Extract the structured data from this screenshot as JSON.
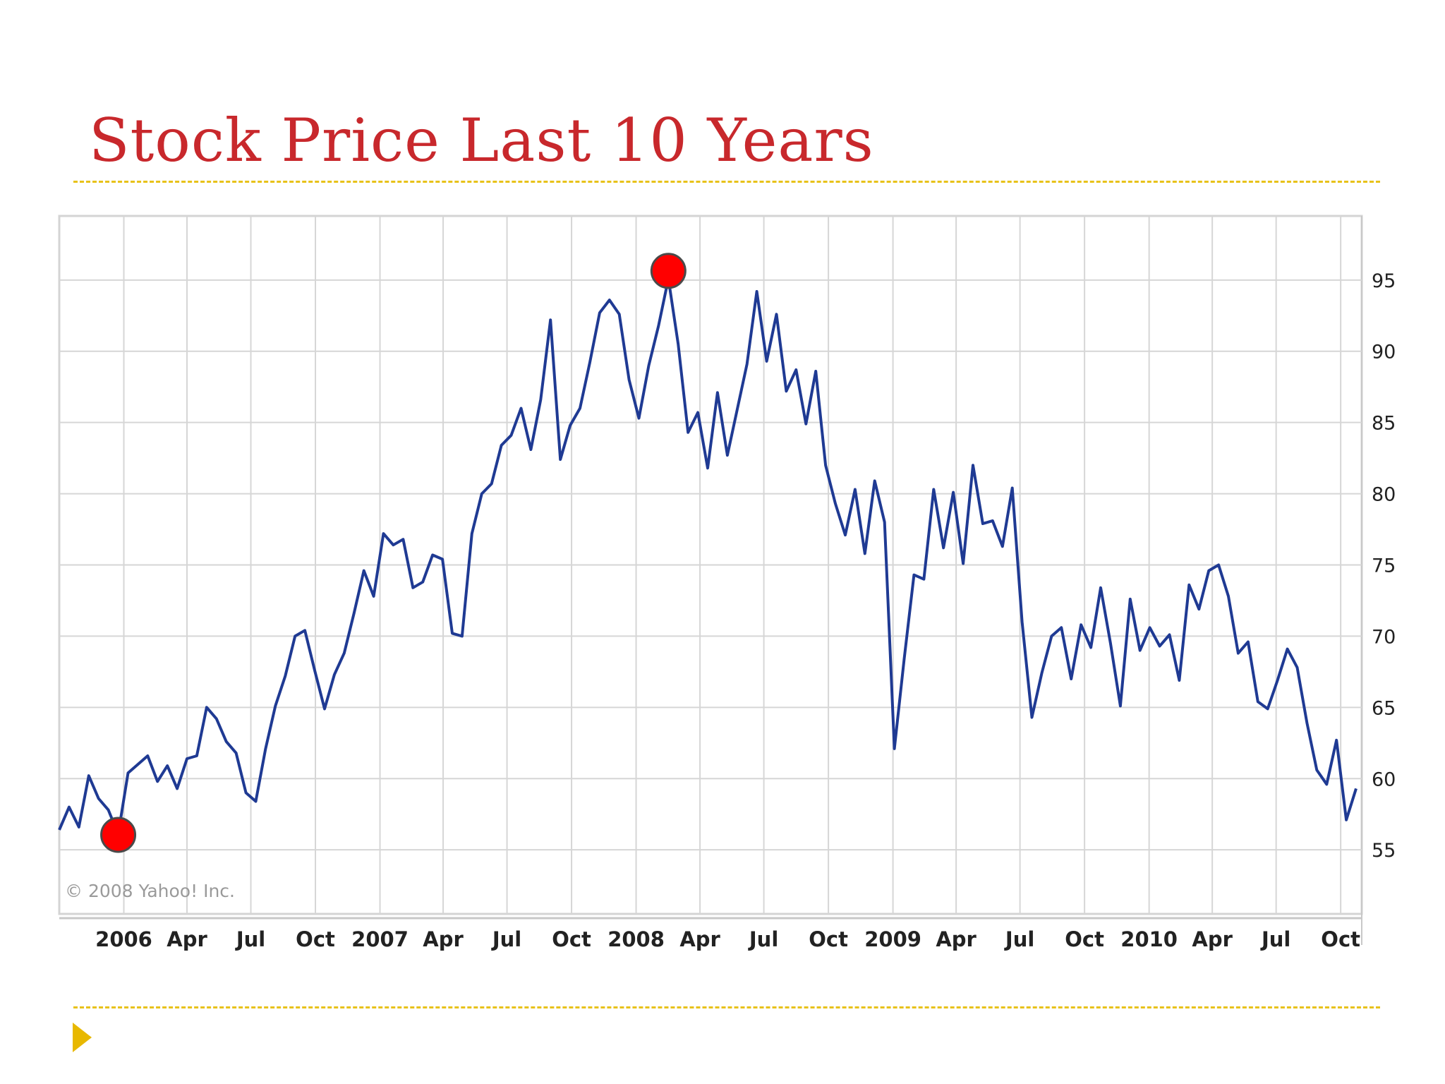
{
  "slide": {
    "title": "Stock Price Last 10 Years",
    "title_color": "#c8282c",
    "rule_color": "#e8c21a",
    "bullet_color": "#e8b800"
  },
  "chart_data": {
    "type": "line",
    "credit": "© 2008 Yahoo! Inc.",
    "y_axis_side": "right",
    "ylim": [
      50.5,
      99.5
    ],
    "y_ticks": [
      55,
      60,
      65,
      70,
      75,
      80,
      85,
      90,
      95
    ],
    "xlim": [
      "2005-10-01",
      "2010-10-31"
    ],
    "x_ticks": [
      {
        "label": "2006",
        "date": "2006-01-01"
      },
      {
        "label": "Apr",
        "date": "2006-04-01"
      },
      {
        "label": "Jul",
        "date": "2006-07-01"
      },
      {
        "label": "Oct",
        "date": "2006-10-01"
      },
      {
        "label": "2007",
        "date": "2007-01-01"
      },
      {
        "label": "Apr",
        "date": "2007-04-01"
      },
      {
        "label": "Jul",
        "date": "2007-07-01"
      },
      {
        "label": "Oct",
        "date": "2007-10-01"
      },
      {
        "label": "2008",
        "date": "2008-01-01"
      },
      {
        "label": "Apr",
        "date": "2008-04-01"
      },
      {
        "label": "Jul",
        "date": "2008-07-01"
      },
      {
        "label": "Oct",
        "date": "2008-10-01"
      },
      {
        "label": "2009",
        "date": "2009-01-01"
      },
      {
        "label": "Apr",
        "date": "2009-04-01"
      },
      {
        "label": "Jul",
        "date": "2009-07-01"
      },
      {
        "label": "Oct",
        "date": "2009-10-01"
      },
      {
        "label": "2010",
        "date": "2010-01-01"
      },
      {
        "label": "Apr",
        "date": "2010-04-01"
      },
      {
        "label": "Jul",
        "date": "2010-07-01"
      },
      {
        "label": "Oct",
        "date": "2010-10-01"
      }
    ],
    "grid": true,
    "series": [
      {
        "color": "#1f3a93",
        "points": [
          [
            "2005-10-01",
            56.4
          ],
          [
            "2005-10-15",
            58.0
          ],
          [
            "2005-10-29",
            56.6
          ],
          [
            "2005-11-12",
            60.2
          ],
          [
            "2005-11-26",
            58.6
          ],
          [
            "2005-12-10",
            57.8
          ],
          [
            "2005-12-24",
            56.1
          ],
          [
            "2006-01-07",
            60.4
          ],
          [
            "2006-01-21",
            61.0
          ],
          [
            "2006-02-04",
            61.6
          ],
          [
            "2006-02-18",
            59.8
          ],
          [
            "2006-03-04",
            60.9
          ],
          [
            "2006-03-18",
            59.3
          ],
          [
            "2006-04-01",
            61.4
          ],
          [
            "2006-04-15",
            61.6
          ],
          [
            "2006-04-29",
            65.0
          ],
          [
            "2006-05-13",
            64.2
          ],
          [
            "2006-05-27",
            62.6
          ],
          [
            "2006-06-10",
            61.8
          ],
          [
            "2006-06-24",
            59.0
          ],
          [
            "2006-07-08",
            58.4
          ],
          [
            "2006-07-22",
            62.1
          ],
          [
            "2006-08-05",
            65.1
          ],
          [
            "2006-08-19",
            67.2
          ],
          [
            "2006-09-02",
            70.0
          ],
          [
            "2006-09-16",
            70.4
          ],
          [
            "2006-09-30",
            67.6
          ],
          [
            "2006-10-14",
            64.9
          ],
          [
            "2006-10-28",
            67.3
          ],
          [
            "2006-11-11",
            68.8
          ],
          [
            "2006-11-25",
            71.6
          ],
          [
            "2006-12-09",
            74.6
          ],
          [
            "2006-12-23",
            72.8
          ],
          [
            "2007-01-06",
            77.2
          ],
          [
            "2007-01-20",
            76.4
          ],
          [
            "2007-02-03",
            76.8
          ],
          [
            "2007-02-17",
            73.4
          ],
          [
            "2007-03-03",
            73.8
          ],
          [
            "2007-03-17",
            75.7
          ],
          [
            "2007-03-31",
            75.4
          ],
          [
            "2007-04-14",
            70.2
          ],
          [
            "2007-04-28",
            70.0
          ],
          [
            "2007-05-12",
            77.2
          ],
          [
            "2007-05-26",
            80.0
          ],
          [
            "2007-06-09",
            80.7
          ],
          [
            "2007-06-23",
            83.4
          ],
          [
            "2007-07-07",
            84.1
          ],
          [
            "2007-07-21",
            86.0
          ],
          [
            "2007-08-04",
            83.1
          ],
          [
            "2007-08-18",
            86.6
          ],
          [
            "2007-09-01",
            92.2
          ],
          [
            "2007-09-15",
            82.4
          ],
          [
            "2007-09-29",
            84.8
          ],
          [
            "2007-10-13",
            86.0
          ],
          [
            "2007-10-27",
            89.2
          ],
          [
            "2007-11-10",
            92.7
          ],
          [
            "2007-11-24",
            93.6
          ],
          [
            "2007-12-08",
            92.6
          ],
          [
            "2007-12-22",
            88.0
          ],
          [
            "2008-01-05",
            85.3
          ],
          [
            "2008-01-19",
            89.0
          ],
          [
            "2008-02-02",
            91.8
          ],
          [
            "2008-02-16",
            95.1
          ],
          [
            "2008-03-01",
            90.5
          ],
          [
            "2008-03-15",
            84.3
          ],
          [
            "2008-03-29",
            85.7
          ],
          [
            "2008-04-12",
            81.8
          ],
          [
            "2008-04-26",
            87.1
          ],
          [
            "2008-05-10",
            82.7
          ],
          [
            "2008-05-24",
            85.9
          ],
          [
            "2008-06-07",
            89.1
          ],
          [
            "2008-06-21",
            94.2
          ],
          [
            "2008-07-05",
            89.3
          ],
          [
            "2008-07-19",
            92.6
          ],
          [
            "2008-08-02",
            87.2
          ],
          [
            "2008-08-16",
            88.7
          ],
          [
            "2008-08-30",
            84.9
          ],
          [
            "2008-09-13",
            88.6
          ],
          [
            "2008-09-27",
            82.0
          ],
          [
            "2008-10-11",
            79.3
          ],
          [
            "2008-10-25",
            77.1
          ],
          [
            "2008-11-08",
            80.3
          ],
          [
            "2008-11-22",
            75.8
          ],
          [
            "2008-12-06",
            80.9
          ],
          [
            "2008-12-20",
            78.0
          ],
          [
            "2009-01-03",
            62.1
          ],
          [
            "2009-01-17",
            68.4
          ],
          [
            "2009-01-31",
            74.3
          ],
          [
            "2009-02-14",
            74.0
          ],
          [
            "2009-02-28",
            80.3
          ],
          [
            "2009-03-14",
            76.2
          ],
          [
            "2009-03-28",
            80.1
          ],
          [
            "2009-04-11",
            75.1
          ],
          [
            "2009-04-25",
            82.0
          ],
          [
            "2009-05-09",
            77.9
          ],
          [
            "2009-05-23",
            78.1
          ],
          [
            "2009-06-06",
            76.3
          ],
          [
            "2009-06-20",
            80.4
          ],
          [
            "2009-07-04",
            71.0
          ],
          [
            "2009-07-18",
            64.3
          ],
          [
            "2009-08-01",
            67.4
          ],
          [
            "2009-08-15",
            70.0
          ],
          [
            "2009-08-29",
            70.6
          ],
          [
            "2009-09-12",
            67.0
          ],
          [
            "2009-09-26",
            70.8
          ],
          [
            "2009-10-10",
            69.2
          ],
          [
            "2009-10-24",
            73.4
          ],
          [
            "2009-11-07",
            69.5
          ],
          [
            "2009-11-21",
            65.1
          ],
          [
            "2009-12-05",
            72.6
          ],
          [
            "2009-12-19",
            69.0
          ],
          [
            "2010-01-02",
            70.6
          ],
          [
            "2010-01-16",
            69.3
          ],
          [
            "2010-01-30",
            70.1
          ],
          [
            "2010-02-13",
            66.9
          ],
          [
            "2010-02-27",
            73.6
          ],
          [
            "2010-03-13",
            71.9
          ],
          [
            "2010-03-27",
            74.6
          ],
          [
            "2010-04-10",
            75.0
          ],
          [
            "2010-04-24",
            72.8
          ],
          [
            "2010-05-08",
            68.8
          ],
          [
            "2010-05-22",
            69.6
          ],
          [
            "2010-06-05",
            65.4
          ],
          [
            "2010-06-19",
            64.9
          ],
          [
            "2010-07-03",
            66.9
          ],
          [
            "2010-07-17",
            69.1
          ],
          [
            "2010-07-31",
            67.8
          ],
          [
            "2010-08-14",
            63.9
          ],
          [
            "2010-08-28",
            60.6
          ],
          [
            "2010-09-11",
            59.6
          ],
          [
            "2010-09-25",
            62.7
          ],
          [
            "2010-10-09",
            57.1
          ],
          [
            "2010-10-23",
            59.3
          ]
        ]
      }
    ],
    "highlight_color": "#ff0000"
  }
}
